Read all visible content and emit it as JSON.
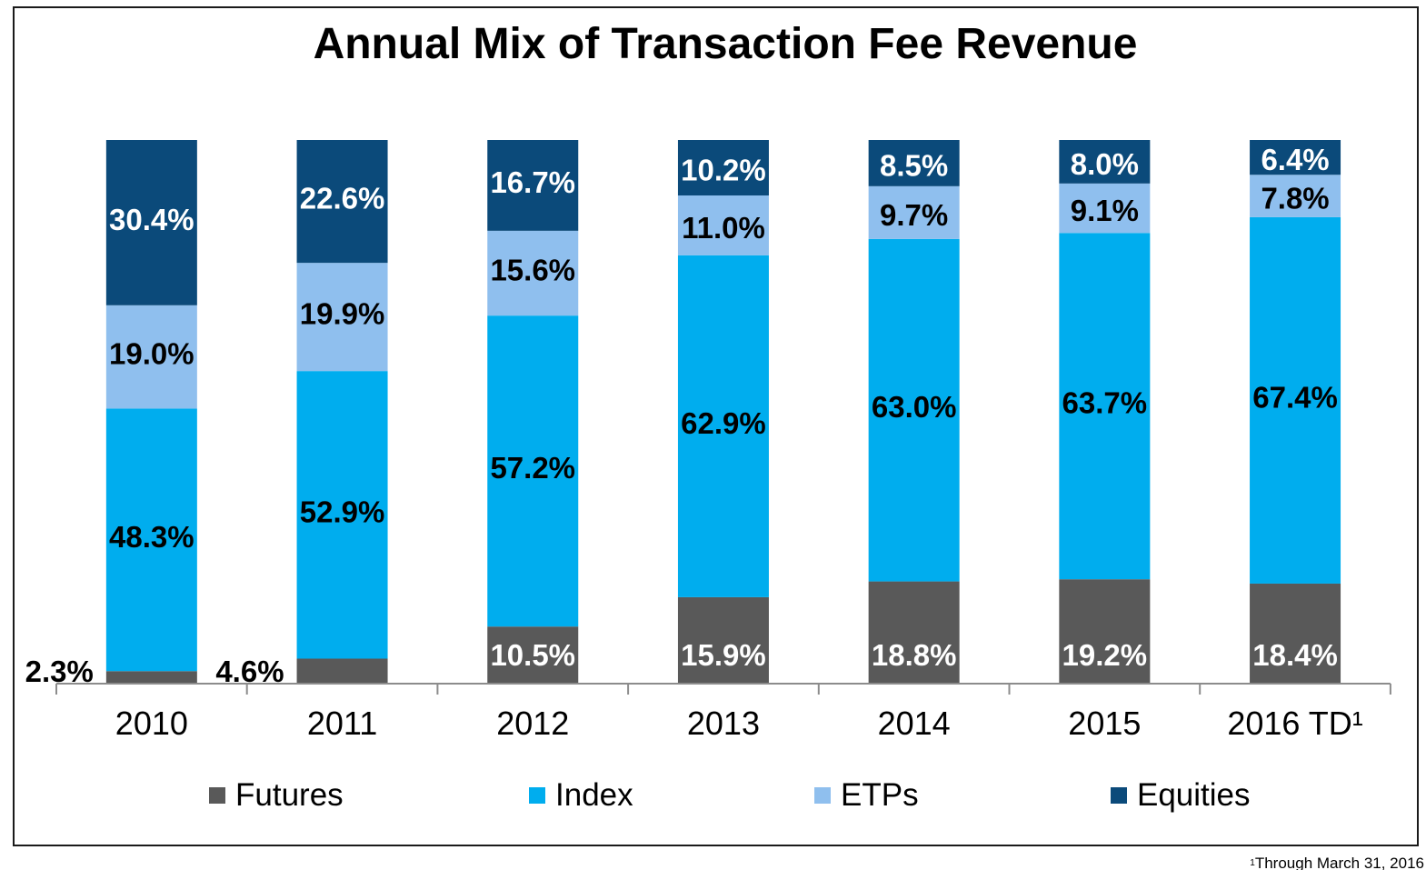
{
  "chart_data": {
    "type": "bar",
    "stacked": true,
    "title": "Annual Mix of Transaction Fee Revenue",
    "categories": [
      "2010",
      "2011",
      "2012",
      "2013",
      "2014",
      "2015",
      "2016 TD¹"
    ],
    "series": [
      {
        "name": "Futures",
        "color": "#595959",
        "values": [
          2.3,
          4.6,
          10.5,
          15.9,
          18.8,
          19.2,
          18.4
        ],
        "labels": [
          "2.3%",
          "4.6%",
          "10.5%",
          "15.9%",
          "18.8%",
          "19.2%",
          "18.4%"
        ],
        "label_color": "#ffffff"
      },
      {
        "name": "Index",
        "color": "#00adee",
        "values": [
          48.3,
          52.9,
          57.2,
          62.9,
          63.0,
          63.7,
          67.4
        ],
        "labels": [
          "48.3%",
          "52.9%",
          "57.2%",
          "62.9%",
          "63.0%",
          "63.7%",
          "67.4%"
        ],
        "label_color": "#000000"
      },
      {
        "name": "ETPs",
        "color": "#8fbfee",
        "values": [
          19.0,
          19.9,
          15.6,
          11.0,
          9.7,
          9.1,
          7.8
        ],
        "labels": [
          "19.0%",
          "19.9%",
          "15.6%",
          "11.0%",
          "9.7%",
          "9.1%",
          "7.8%"
        ],
        "label_color": "#000000"
      },
      {
        "name": "Equities",
        "color": "#0b4a7a",
        "values": [
          30.4,
          22.6,
          16.7,
          10.2,
          8.5,
          8.0,
          6.4
        ],
        "labels": [
          "30.4%",
          "22.6%",
          "16.7%",
          "10.2%",
          "8.5%",
          "8.0%",
          "6.4%"
        ],
        "label_color": "#ffffff"
      }
    ],
    "ylim": [
      0,
      100
    ],
    "xlabel": "",
    "ylabel": "",
    "grid": false,
    "legend_position": "bottom",
    "outside_label_color": "#000000"
  },
  "footnote": {
    "marker": "1",
    "text": "Through March 31, 2016"
  }
}
